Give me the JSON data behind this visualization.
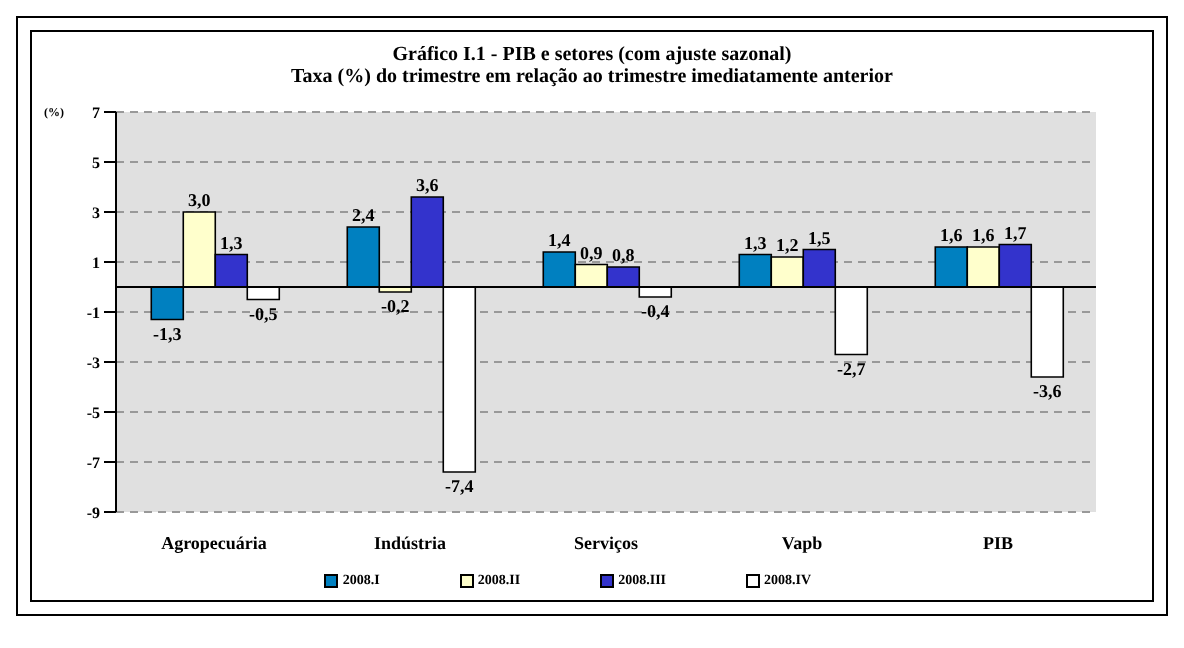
{
  "chart_data": {
    "type": "bar",
    "title": "Gráfico I.1 - PIB  e setores (com ajuste sazonal)",
    "subtitle": "Taxa (%) do trimestre em relação ao trimestre imediatamente anterior",
    "ylabel": "(%)",
    "categories": [
      "Agropecuária",
      "Indústria",
      "Serviços",
      "Vapb",
      "PIB"
    ],
    "series": [
      {
        "name": "2008.I",
        "color": "#0080c0",
        "values": [
          -1.3,
          2.4,
          1.4,
          1.3,
          1.6
        ],
        "value_labels": [
          "-1,3",
          "2,4",
          "1,4",
          "1,3",
          "1,6"
        ]
      },
      {
        "name": "2008.II",
        "color": "#ffffcc",
        "values": [
          3.0,
          -0.2,
          0.9,
          1.2,
          1.6
        ],
        "value_labels": [
          "3,0",
          "-0,2",
          "0,9",
          "1,2",
          "1,6"
        ]
      },
      {
        "name": "2008.III",
        "color": "#3333cc",
        "values": [
          1.3,
          3.6,
          0.8,
          1.5,
          1.7
        ],
        "value_labels": [
          "1,3",
          "3,6",
          "0,8",
          "1,5",
          "1,7"
        ]
      },
      {
        "name": "2008.IV",
        "color": "#ffffff",
        "values": [
          -0.5,
          -7.4,
          -0.4,
          -2.7,
          -3.6
        ],
        "value_labels": [
          "-0,5",
          "-7,4",
          "-0,4",
          "-2,7",
          "-3,6"
        ]
      }
    ],
    "ylim": [
      -9,
      7
    ],
    "yticks": [
      -9,
      -7,
      -5,
      -3,
      -1,
      1,
      3,
      5,
      7
    ],
    "grid": "y",
    "legend": "bottom"
  }
}
